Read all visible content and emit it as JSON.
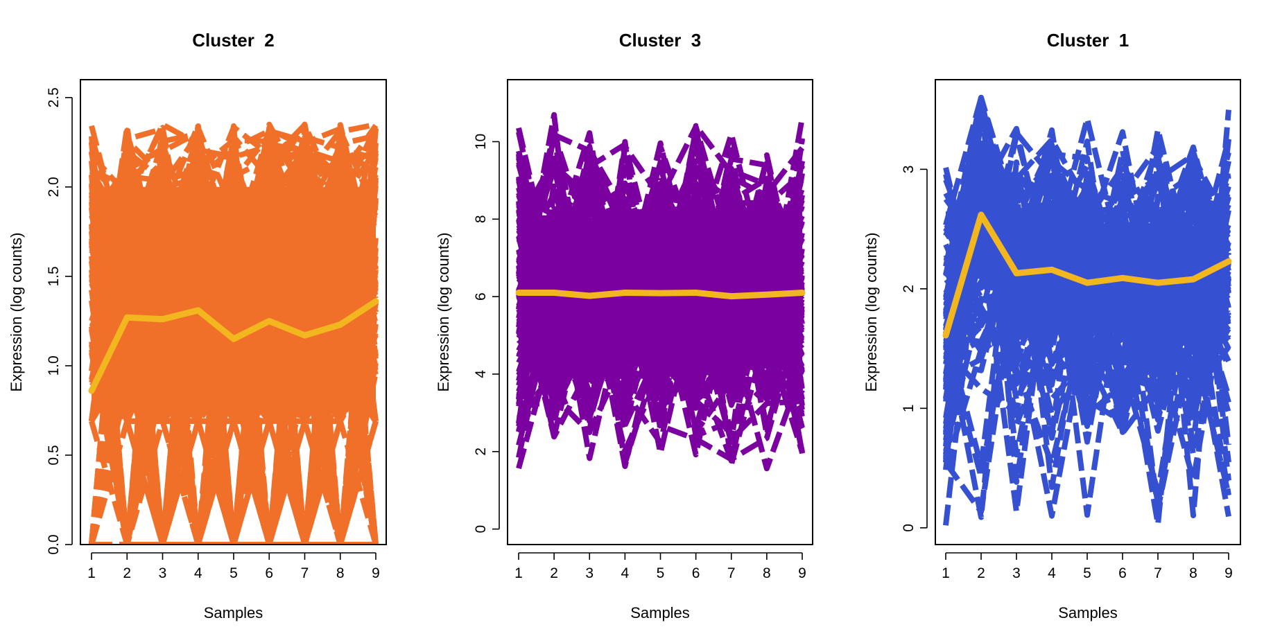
{
  "chart_data": [
    {
      "type": "line",
      "title": "Cluster  2",
      "xlabel": "Samples",
      "ylabel": "Expression (log counts)",
      "x": [
        1,
        2,
        3,
        4,
        5,
        6,
        7,
        8,
        9
      ],
      "xticks": [
        "1",
        "2",
        "3",
        "4",
        "5",
        "6",
        "7",
        "8",
        "9"
      ],
      "ylim": [
        0,
        2.6
      ],
      "yticks": [
        "0.0",
        "0.5",
        "1.0",
        "1.5",
        "2.0",
        "2.5"
      ],
      "ytick_values": [
        0.0,
        0.5,
        1.0,
        1.5,
        2.0,
        2.5
      ],
      "line_color": "#F07029",
      "mean_color": "#F2B71F",
      "line_style": "dashed",
      "profile_count": 140,
      "profile_range": [
        0.0,
        2.45
      ],
      "mean_profile": [
        0.86,
        1.27,
        1.26,
        1.31,
        1.15,
        1.25,
        1.17,
        1.23,
        1.36
      ]
    },
    {
      "type": "line",
      "title": "Cluster  3",
      "xlabel": "Samples",
      "ylabel": "Expression (log counts)",
      "x": [
        1,
        2,
        3,
        4,
        5,
        6,
        7,
        8,
        9
      ],
      "xticks": [
        "1",
        "2",
        "3",
        "4",
        "5",
        "6",
        "7",
        "8",
        "9"
      ],
      "ylim": [
        -0.4,
        11.6
      ],
      "yticks": [
        "0",
        "2",
        "4",
        "6",
        "8",
        "10"
      ],
      "ytick_values": [
        0,
        2,
        4,
        6,
        8,
        10
      ],
      "line_color": "#7B00A0",
      "mean_color": "#F2B71F",
      "line_style": "dashed",
      "profile_count": 170,
      "profile_range": [
        0.1,
        11.1
      ],
      "mean_profile": [
        6.1,
        6.1,
        6.02,
        6.1,
        6.09,
        6.1,
        6.01,
        6.05,
        6.1
      ]
    },
    {
      "type": "line",
      "title": "Cluster  1",
      "xlabel": "Samples",
      "ylabel": "Expression (log counts)",
      "x": [
        1,
        2,
        3,
        4,
        5,
        6,
        7,
        8,
        9
      ],
      "xticks": [
        "1",
        "2",
        "3",
        "4",
        "5",
        "6",
        "7",
        "8",
        "9"
      ],
      "ylim": [
        -0.14,
        3.75
      ],
      "yticks": [
        "0",
        "1",
        "2",
        "3"
      ],
      "ytick_values": [
        0,
        1,
        2,
        3
      ],
      "line_color": "#3650D2",
      "mean_color": "#F2B71F",
      "line_style": "dashed",
      "profile_count": 120,
      "profile_range": [
        0.0,
        3.6
      ],
      "mean_profile": [
        1.61,
        2.62,
        2.13,
        2.16,
        2.05,
        2.09,
        2.05,
        2.08,
        2.23
      ]
    }
  ]
}
